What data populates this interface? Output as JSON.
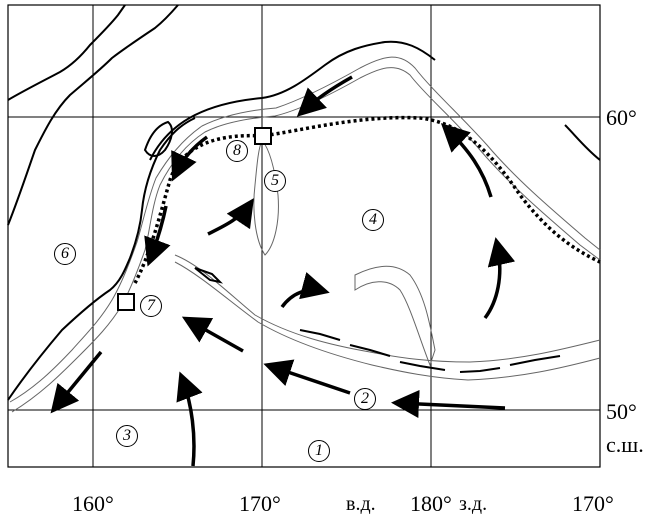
{
  "lat_labels": {
    "lat60": "60°",
    "lat50": "50°",
    "lat_hemi": "с.ш."
  },
  "lon_labels": {
    "lon160": "160°",
    "lon170e": "170°",
    "east_tag": "в.д.",
    "lon180": "180°",
    "west_tag": "з.д.",
    "lon170w": "170°"
  },
  "markers": [
    "1",
    "2",
    "3",
    "4",
    "5",
    "6",
    "7",
    "8"
  ],
  "colors": {
    "ink": "#000000",
    "shelf": "#666666",
    "background": "#ffffff"
  }
}
